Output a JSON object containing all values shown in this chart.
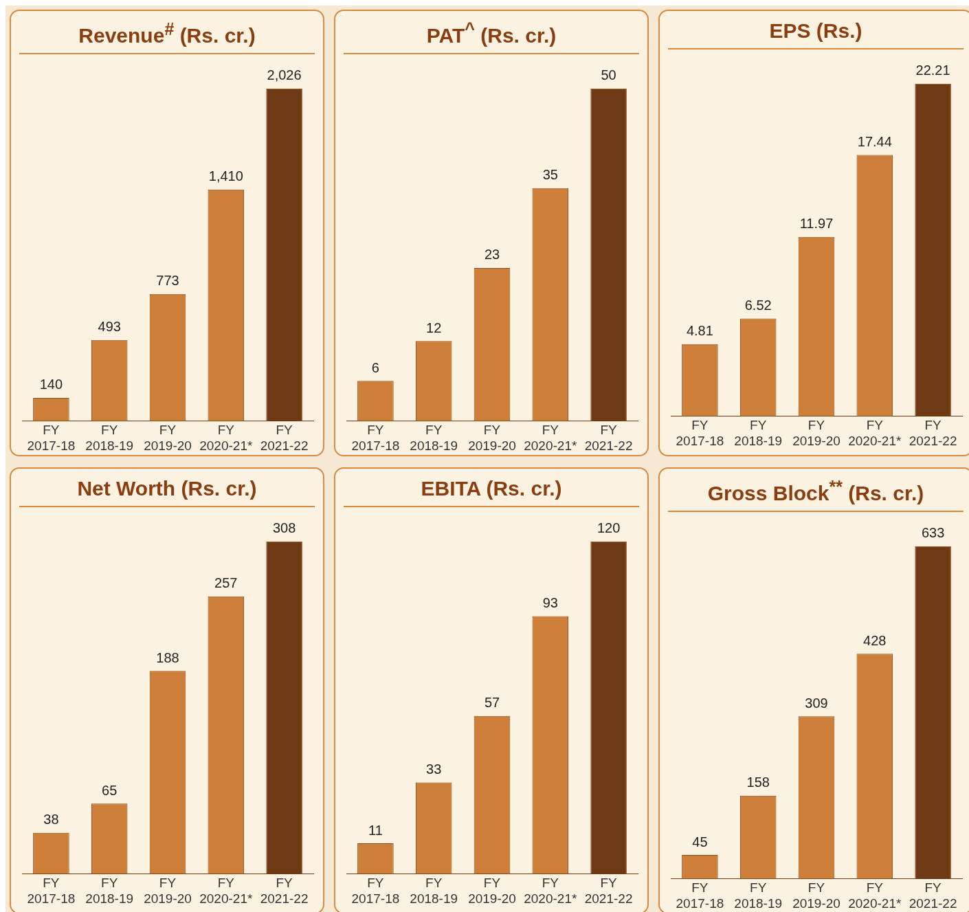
{
  "chart_data": [
    {
      "type": "bar",
      "title": "Revenue$^{#}$ (Rs. cr.)",
      "categories": [
        "FY 2017-18",
        "FY 2018-19",
        "FY 2019-20",
        "FY 2020-21*",
        "FY 2021-22"
      ],
      "values": [
        140,
        493,
        773,
        1410,
        2026
      ],
      "value_labels": [
        "140",
        "493",
        "773",
        "1,410",
        "2,026"
      ],
      "colors": [
        "#cd7f3a",
        "#cd7f3a",
        "#cd7f3a",
        "#cd7f3a",
        "#6e3a14"
      ],
      "legend": false,
      "grid": false
    },
    {
      "type": "bar",
      "title": "PAT$^{^}$ (Rs. cr.)",
      "categories": [
        "FY 2017-18",
        "FY 2018-19",
        "FY 2019-20",
        "FY 2020-21*",
        "FY 2021-22"
      ],
      "values": [
        6,
        12,
        23,
        35,
        50
      ],
      "data_labels": true,
      "colors": [
        "#cd7f3a",
        "#cd7f3a",
        "#cd7f3a",
        "#cd7f3a",
        "#6e3a14"
      ],
      "legend": false,
      "grid": false
    },
    {
      "type": "bar",
      "title": "EPS (Rs.)",
      "categories": [
        "FY 2017-18",
        "FY 2018-19",
        "FY 2019-20",
        "FY 2020-21*",
        "FY 2021-22"
      ],
      "values": [
        4.81,
        6.52,
        11.97,
        17.44,
        22.21
      ],
      "data_labels": true,
      "colors": [
        "#cd7f3a",
        "#cd7f3a",
        "#cd7f3a",
        "#cd7f3a",
        "#6e3a14"
      ],
      "legend": false,
      "grid": false
    },
    {
      "type": "bar",
      "title": "Net Worth (Rs. cr.)",
      "categories": [
        "FY 2017-18",
        "FY 2018-19",
        "FY 2019-20",
        "FY 2020-21*",
        "FY 2021-22"
      ],
      "values": [
        38,
        65,
        188,
        257,
        308
      ],
      "data_labels": true,
      "colors": [
        "#cd7f3a",
        "#cd7f3a",
        "#cd7f3a",
        "#cd7f3a",
        "#6e3a14"
      ],
      "legend": false,
      "grid": false
    },
    {
      "type": "bar",
      "title": "EBITA (Rs. cr.)",
      "categories": [
        "FY 2017-18",
        "FY 2018-19",
        "FY 2019-20",
        "FY 2020-21*",
        "FY 2021-22"
      ],
      "values": [
        11,
        33,
        57,
        93,
        120
      ],
      "data_labels": true,
      "colors": [
        "#cd7f3a",
        "#cd7f3a",
        "#cd7f3a",
        "#cd7f3a",
        "#6e3a14"
      ],
      "legend": false,
      "grid": false
    },
    {
      "type": "bar",
      "title": "Gross Block$^{**}$ (Rs. cr.)",
      "categories": [
        "FY 2017-18",
        "FY 2018-19",
        "FY 2019-20",
        "FY 2020-21*",
        "FY 2021-22"
      ],
      "values": [
        45,
        158,
        309,
        428,
        633
      ],
      "data_labels": true,
      "colors": [
        "#cd7f3a",
        "#cd7f3a",
        "#cd7f3a",
        "#cd7f3a",
        "#6e3a14"
      ],
      "legend": false,
      "grid": false
    }
  ]
}
